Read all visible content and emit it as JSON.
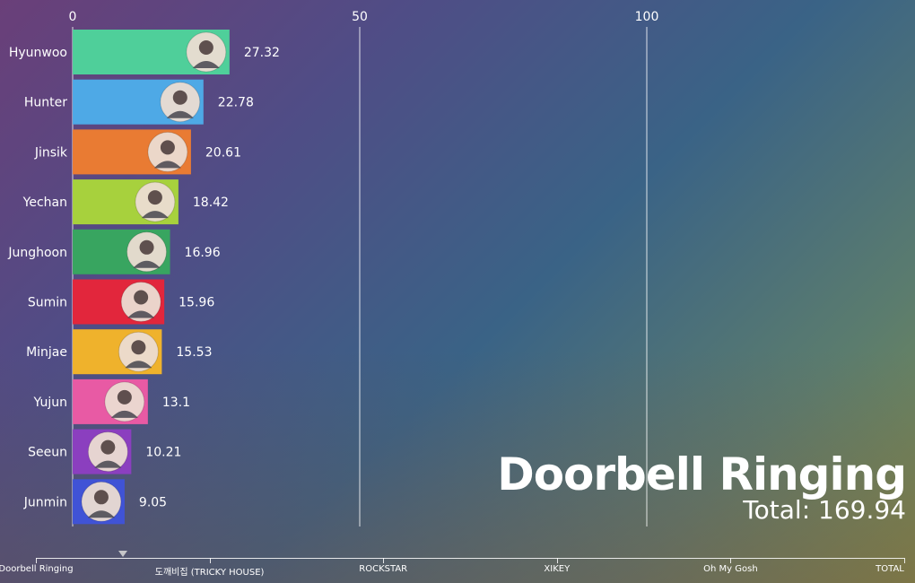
{
  "chart_data": {
    "type": "bar",
    "orientation": "horizontal",
    "categories": [
      "Hyunwoo",
      "Hunter",
      "Jinsik",
      "Yechan",
      "Junghoon",
      "Sumin",
      "Minjae",
      "Yujun",
      "Seeun",
      "Junmin"
    ],
    "values": [
      27.32,
      22.78,
      20.61,
      18.42,
      16.96,
      15.96,
      15.53,
      13.1,
      10.21,
      9.05
    ],
    "value_labels": [
      "27.32",
      "22.78",
      "20.61",
      "18.42",
      "16.96",
      "15.96",
      "15.53",
      "13.1",
      "10.21",
      "9.05"
    ],
    "colors": [
      "#4fcf9a",
      "#4ea9e6",
      "#e97b33",
      "#a7d13d",
      "#38a560",
      "#e2263c",
      "#efb22c",
      "#e85aa4",
      "#8b3fbf",
      "#4053d6"
    ],
    "xlim": [
      0,
      146
    ],
    "xticks": [
      0,
      50,
      100
    ],
    "xtick_labels": [
      "0",
      "50",
      "100"
    ],
    "grid": true,
    "title": "Doorbell Ringing",
    "total_label": "Total: 169.94",
    "xlabel": "",
    "ylabel": ""
  },
  "timeline": {
    "labels": [
      "Doorbell Ringing",
      "도깨비집 (TRICKY HOUSE)",
      "ROCKSTAR",
      "XIKEY",
      "Oh My Gosh",
      "TOTAL"
    ],
    "current_index": 0.5
  }
}
